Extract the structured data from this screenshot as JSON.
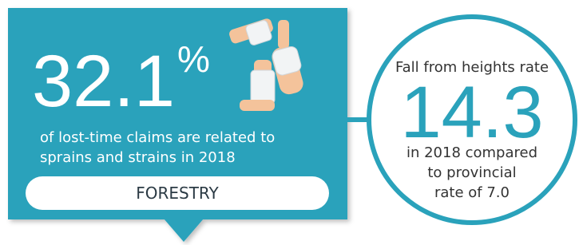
{
  "left_panel": {
    "stat": "32.1",
    "unit": "%",
    "caption_lines": [
      "of lost-time claims are related to",
      "sprains and strains in 2018"
    ],
    "sector": "FORESTRY"
  },
  "circle_panel": {
    "heading": "Fall from heights rate",
    "stat": "14.3",
    "detail_lines": [
      "in 2018 compared",
      "to provincial",
      "rate of 7.0"
    ]
  }
}
